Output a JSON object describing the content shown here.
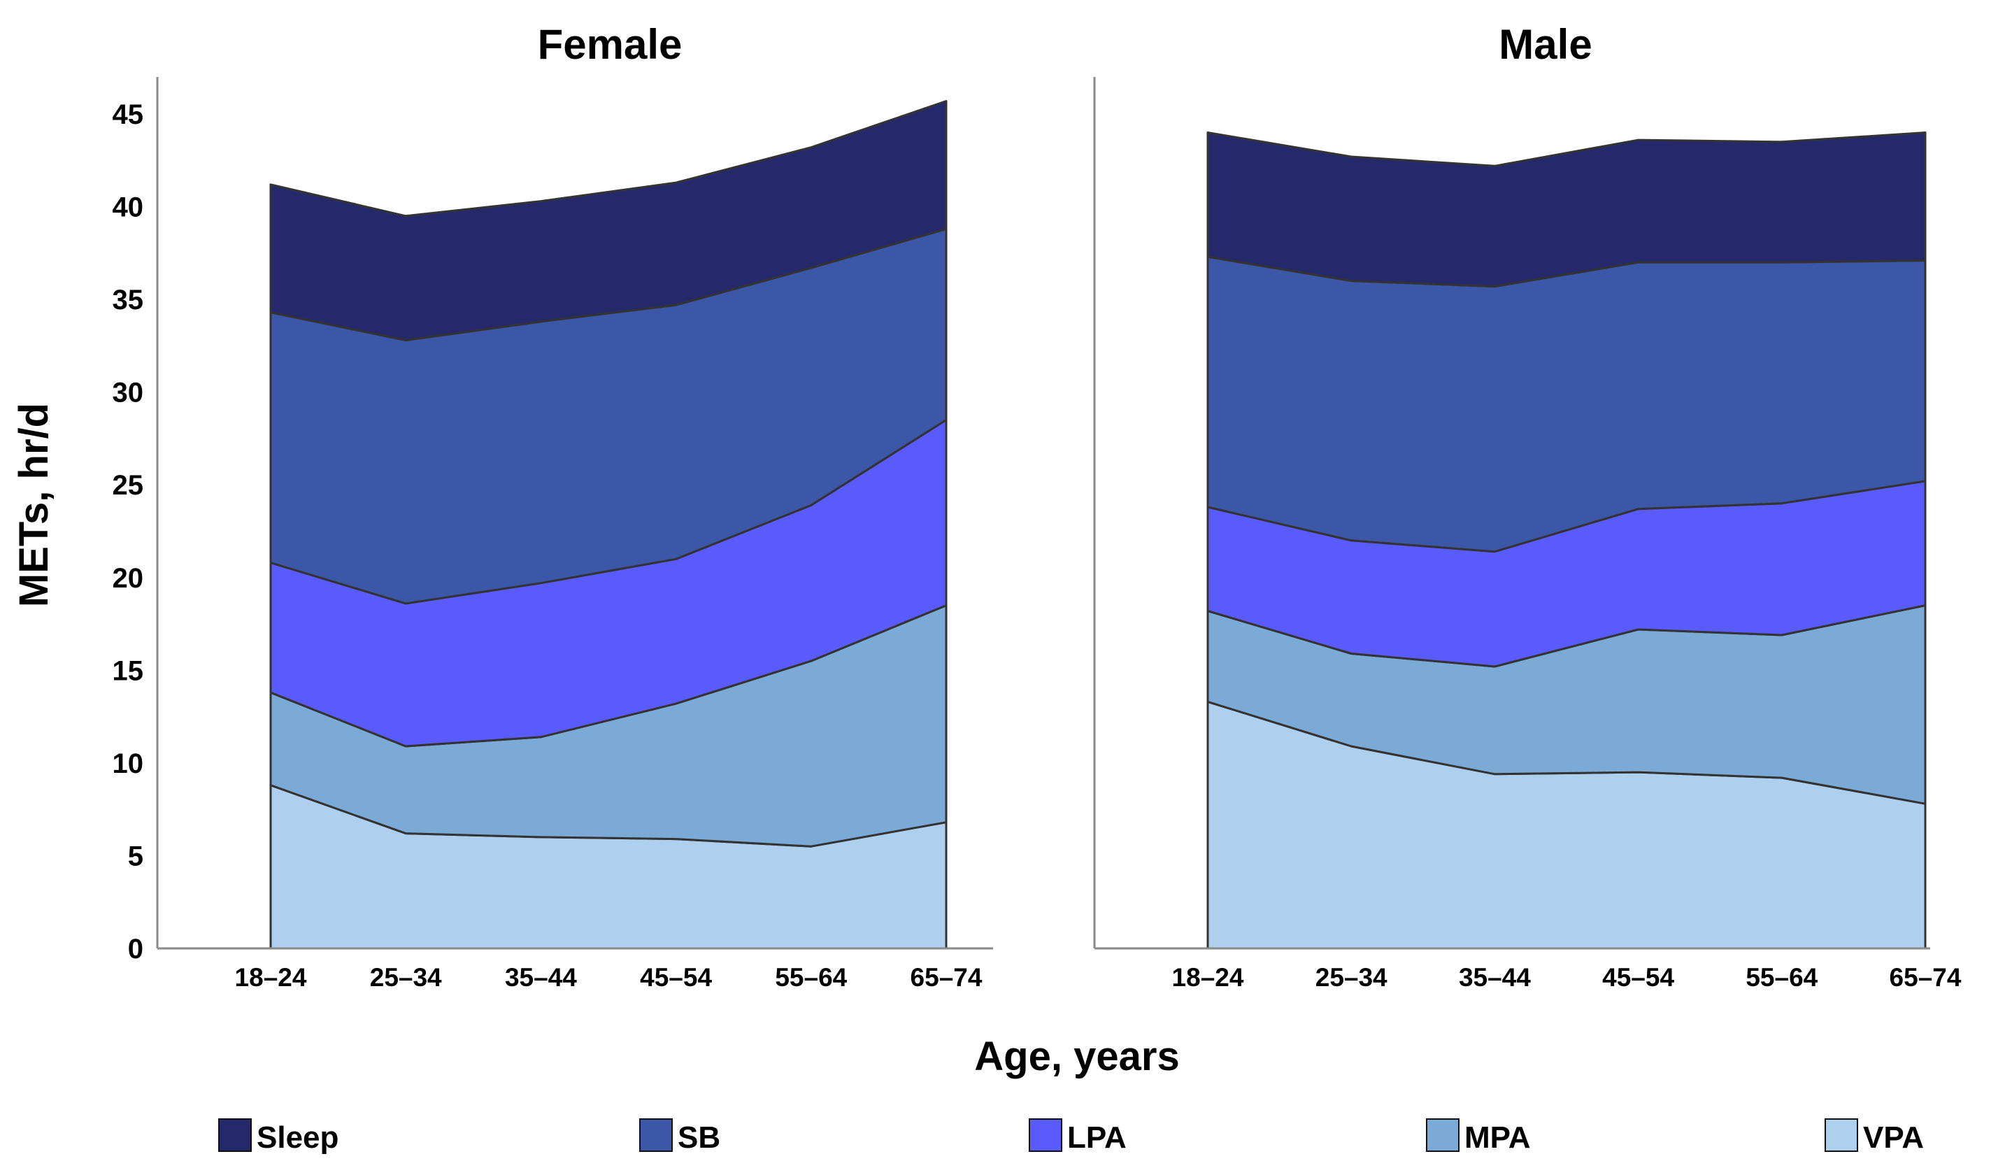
{
  "chart_data": {
    "type": "area",
    "stacked": true,
    "xlabel": "Age, years",
    "ylabel": "METs, hr/d",
    "ylim": [
      0,
      47
    ],
    "yticks": [
      0,
      5,
      10,
      15,
      20,
      25,
      30,
      35,
      40,
      45
    ],
    "categories": [
      "18–24",
      "25–34",
      "35–44",
      "45–54",
      "55–64",
      "65–74"
    ],
    "legend": {
      "placement": "bottom",
      "items": [
        {
          "label": "Sleep",
          "color": "#25286b"
        },
        {
          "label": "SB",
          "color": "#3c56a8"
        },
        {
          "label": "LPA",
          "color": "#5a5bfc"
        },
        {
          "label": "MPA",
          "color": "#7caad6"
        },
        {
          "label": "VPA",
          "color": "#aed0ee"
        }
      ]
    },
    "panels": [
      {
        "title": "Female",
        "series": [
          {
            "name": "VPA",
            "color": "#aed0ee",
            "values": [
              8.8,
              6.2,
              6.0,
              5.9,
              5.5,
              6.8
            ]
          },
          {
            "name": "MPA",
            "color": "#7caad6",
            "values": [
              5.0,
              4.7,
              5.4,
              7.3,
              10.0,
              11.7
            ]
          },
          {
            "name": "LPA",
            "color": "#5a5bfc",
            "values": [
              7.0,
              7.7,
              8.3,
              7.8,
              8.4,
              10.0
            ]
          },
          {
            "name": "SB",
            "color": "#3c56a8",
            "values": [
              13.5,
              14.2,
              14.1,
              13.7,
              12.8,
              10.3
            ]
          },
          {
            "name": "Sleep",
            "color": "#25286b",
            "values": [
              6.9,
              6.7,
              6.5,
              6.6,
              6.5,
              6.9
            ]
          }
        ]
      },
      {
        "title": "Male",
        "series": [
          {
            "name": "VPA",
            "color": "#aed0ee",
            "values": [
              13.3,
              10.9,
              9.4,
              9.5,
              9.2,
              7.8
            ]
          },
          {
            "name": "MPA",
            "color": "#7caad6",
            "values": [
              4.9,
              5.0,
              5.8,
              7.7,
              7.7,
              10.7
            ]
          },
          {
            "name": "LPA",
            "color": "#5a5bfc",
            "values": [
              5.6,
              6.1,
              6.2,
              6.5,
              7.1,
              6.7
            ]
          },
          {
            "name": "SB",
            "color": "#3c56a8",
            "values": [
              13.5,
              14.0,
              14.3,
              13.3,
              13.0,
              11.9
            ]
          },
          {
            "name": "Sleep",
            "color": "#25286b",
            "values": [
              6.7,
              6.7,
              6.5,
              6.6,
              6.5,
              6.9
            ]
          }
        ]
      }
    ]
  }
}
